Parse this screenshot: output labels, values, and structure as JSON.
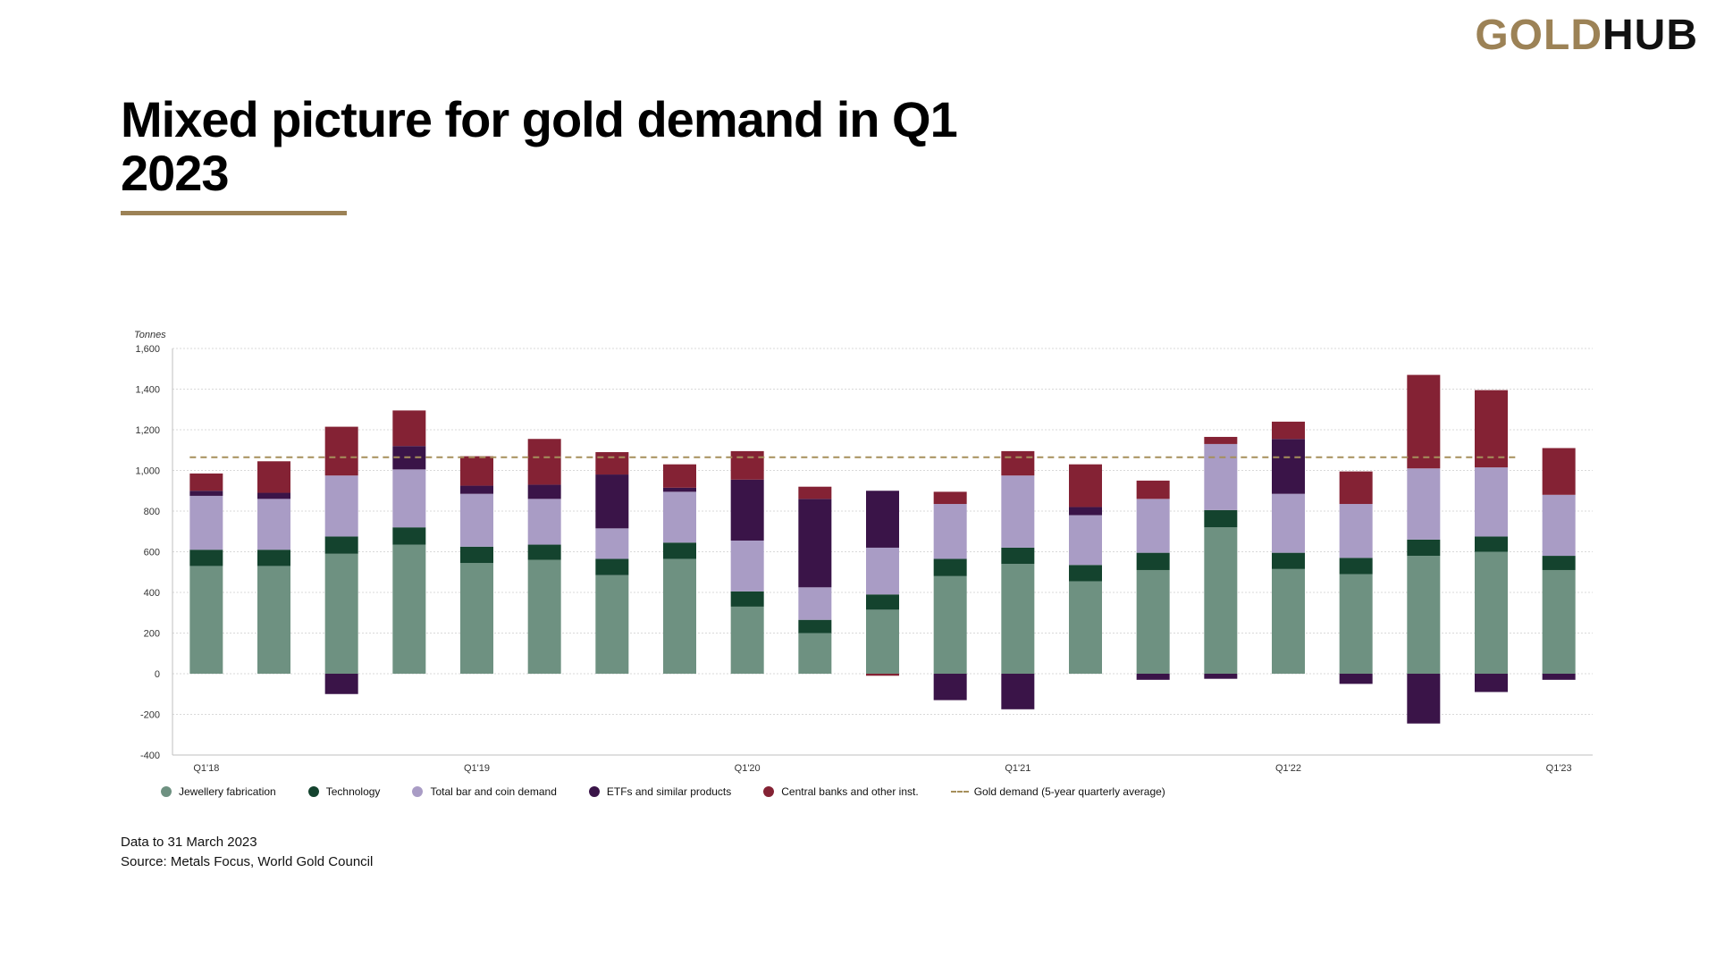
{
  "logo": {
    "part1": "GOLD",
    "part2": "HUB"
  },
  "title": "Mixed picture for gold demand in Q1 2023",
  "footer": {
    "line1": "Data to 31 March 2023",
    "line2": "Source: Metals Focus, World Gold Council"
  },
  "colors": {
    "jewellery": "#6e9181",
    "technology": "#14432e",
    "barcoin": "#a99cc5",
    "etf": "#3a1448",
    "centralbanks": "#842234",
    "average": "#a68f5b",
    "brand": "#9c8256"
  },
  "chart_data": {
    "type": "bar",
    "stacked": true,
    "ylabel": "Tonnes",
    "ylim": [
      -400,
      1600
    ],
    "yticks": [
      -400,
      -200,
      0,
      200,
      400,
      600,
      800,
      1000,
      1200,
      1400,
      1600
    ],
    "ytick_labels": [
      "-400",
      "-200",
      "0",
      "200",
      "400",
      "600",
      "800",
      "1,000",
      "1,200",
      "1,400",
      "1,600"
    ],
    "grid": true,
    "legend_position": "bottom",
    "categories": [
      "Q1'18",
      "Q2'18",
      "Q3'18",
      "Q4'18",
      "Q1'19",
      "Q2'19",
      "Q3'19",
      "Q4'19",
      "Q1'20",
      "Q2'20",
      "Q3'20",
      "Q4'20",
      "Q1'21",
      "Q2'21",
      "Q3'21",
      "Q4'21",
      "Q1'22",
      "Q2'22",
      "Q3'22",
      "Q4'22",
      "Q1'23"
    ],
    "x_tick_labels": [
      "Q1'18",
      "",
      "",
      "",
      "Q1'19",
      "",
      "",
      "",
      "Q1'20",
      "",
      "",
      "",
      "Q1'21",
      "",
      "",
      "",
      "Q1'22",
      "",
      "",
      "",
      "Q1'23"
    ],
    "series": [
      {
        "name": "Jewellery fabrication",
        "key": "jewellery",
        "values": [
          530,
          530,
          590,
          635,
          545,
          560,
          485,
          565,
          330,
          200,
          315,
          480,
          540,
          455,
          510,
          720,
          515,
          490,
          580,
          600,
          510
        ]
      },
      {
        "name": "Technology",
        "key": "technology",
        "values": [
          80,
          80,
          85,
          85,
          80,
          75,
          80,
          80,
          75,
          65,
          75,
          85,
          80,
          80,
          85,
          85,
          80,
          80,
          80,
          75,
          70
        ]
      },
      {
        "name": "Total bar and coin demand",
        "key": "barcoin",
        "values": [
          265,
          250,
          300,
          285,
          260,
          225,
          150,
          250,
          250,
          160,
          230,
          270,
          355,
          245,
          265,
          325,
          290,
          265,
          350,
          340,
          300
        ]
      },
      {
        "name": "ETFs and similar products",
        "key": "etf",
        "values": [
          25,
          30,
          -100,
          115,
          40,
          70,
          265,
          20,
          300,
          435,
          280,
          -130,
          -175,
          40,
          -30,
          -25,
          270,
          -50,
          -245,
          -90,
          -30
        ]
      },
      {
        "name": "Central banks and other inst.",
        "key": "centralbanks",
        "values": [
          85,
          155,
          240,
          175,
          145,
          225,
          110,
          115,
          140,
          60,
          -10,
          60,
          120,
          210,
          90,
          35,
          85,
          160,
          460,
          380,
          230
        ]
      }
    ],
    "average_line": {
      "name": "Gold demand (5-year quarterly average)",
      "value": 1065
    }
  }
}
